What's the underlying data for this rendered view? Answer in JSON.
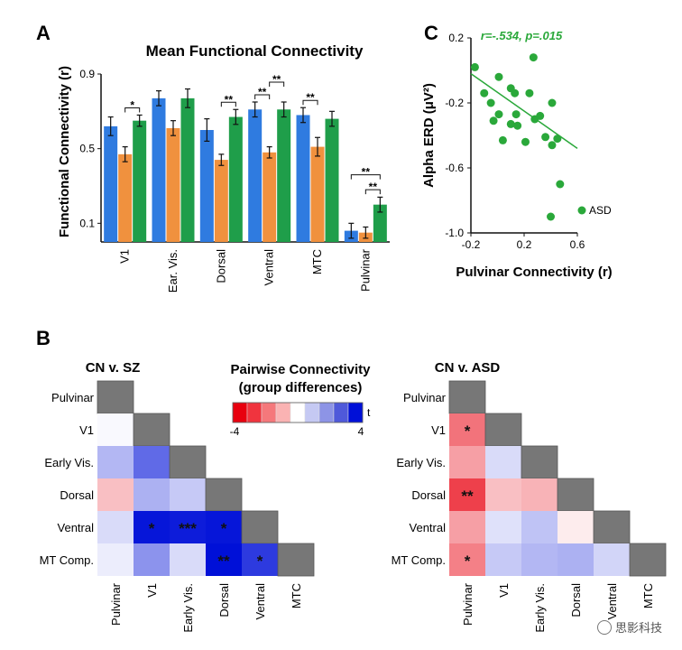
{
  "panels": {
    "a": {
      "letter": "A"
    },
    "b": {
      "letter": "B"
    },
    "c": {
      "letter": "C"
    }
  },
  "watermark": {
    "text": "思影科技",
    "icon": "wechat-icon"
  },
  "chart_data": [
    {
      "id": "panel-a",
      "type": "bar",
      "title": "Mean Functional Connectivity",
      "xlabel": "",
      "ylabel": "Functional Connectivity (r)",
      "ylim": [
        0,
        0.9
      ],
      "yticks": [
        0.1,
        0.5,
        0.9
      ],
      "yticklabels": [
        "0.1",
        "0.5",
        "0.9"
      ],
      "categories": [
        "V1",
        "Ear. Vis.",
        "Dorsal",
        "Ventral",
        "MTC",
        "Pulvinar"
      ],
      "series": [
        {
          "color": "#2f7be0",
          "values": [
            0.62,
            0.77,
            0.6,
            0.71,
            0.68,
            0.06
          ],
          "errors": [
            0.05,
            0.04,
            0.06,
            0.04,
            0.04,
            0.04
          ]
        },
        {
          "color": "#f0913e",
          "values": [
            0.47,
            0.61,
            0.44,
            0.48,
            0.51,
            0.05
          ],
          "errors": [
            0.04,
            0.04,
            0.03,
            0.03,
            0.05,
            0.03
          ]
        },
        {
          "color": "#1f9e4a",
          "values": [
            0.65,
            0.77,
            0.67,
            0.71,
            0.66,
            0.2
          ],
          "errors": [
            0.03,
            0.05,
            0.04,
            0.04,
            0.04,
            0.04
          ]
        }
      ],
      "significance": [
        {
          "category": 0,
          "from": 1,
          "to": 2,
          "label": "*"
        },
        {
          "category": 2,
          "from": 1,
          "to": 2,
          "label": "**"
        },
        {
          "category": 3,
          "from": 0,
          "to": 1,
          "label": "**"
        },
        {
          "category": 3,
          "from": 1,
          "to": 2,
          "label": "**"
        },
        {
          "category": 4,
          "from": 0,
          "to": 1,
          "label": "**"
        },
        {
          "category": 5,
          "from": 0,
          "to": 2,
          "label": "**"
        },
        {
          "category": 5,
          "from": 1,
          "to": 2,
          "label": "**"
        }
      ]
    },
    {
      "id": "panel-c",
      "type": "scatter",
      "xlabel": "Pulvinar Connectivity (r)",
      "ylabel": "Alpha ERD (μV²)",
      "xlim": [
        -0.2,
        0.6
      ],
      "ylim": [
        0.2,
        -1.0
      ],
      "xticks": [
        -0.2,
        0.2,
        0.6
      ],
      "xticklabels": [
        "-0.2",
        "0.2",
        "0.6"
      ],
      "yticks": [
        -1.0,
        -0.6,
        -0.2,
        0.2
      ],
      "yticklabels": [
        "-1.0",
        "-0.6",
        "-0.2",
        "0.2"
      ],
      "annotation": "r=-.534, p=.015",
      "legend": {
        "label": "ASD",
        "color": "#2aa83a",
        "position": "bottom-right"
      },
      "color": "#2aa83a",
      "points": [
        [
          0.4,
          -0.9
        ],
        [
          0.47,
          -0.7
        ],
        [
          0.41,
          -0.46
        ],
        [
          0.45,
          -0.42
        ],
        [
          0.36,
          -0.41
        ],
        [
          0.04,
          -0.43
        ],
        [
          0.21,
          -0.44
        ],
        [
          0.1,
          -0.33
        ],
        [
          -0.03,
          -0.31
        ],
        [
          0.01,
          -0.27
        ],
        [
          0.15,
          -0.34
        ],
        [
          0.28,
          -0.3
        ],
        [
          0.32,
          -0.28
        ],
        [
          0.14,
          -0.27
        ],
        [
          0.41,
          -0.2
        ],
        [
          -0.05,
          -0.2
        ],
        [
          0.13,
          -0.14
        ],
        [
          -0.1,
          -0.14
        ],
        [
          0.24,
          -0.14
        ],
        [
          0.1,
          -0.11
        ],
        [
          0.01,
          -0.04
        ],
        [
          -0.17,
          0.02
        ],
        [
          0.27,
          0.08
        ]
      ],
      "fit": {
        "x": [
          -0.2,
          0.6
        ],
        "y": [
          -0.02,
          -0.48
        ]
      }
    },
    {
      "id": "panel-b-colorbar",
      "type": "heatmap",
      "title": "Pairwise Connectivity",
      "subtitle": "(group differences)",
      "legend_label": "t",
      "range": [
        -4,
        4
      ],
      "ticklabels": [
        "-4",
        "4"
      ],
      "colors": [
        "#e8000f",
        "#f0343e",
        "#f5787b",
        "#fab3b3",
        "#ffffff",
        "#c5c9f3",
        "#8d94e6",
        "#4f59da",
        "#0010d8"
      ]
    },
    {
      "id": "panel-b-sz",
      "type": "heatmap",
      "title": "CN v. SZ",
      "rows": [
        "Pulvinar",
        "V1",
        "Early Vis.",
        "Dorsal",
        "Ventral",
        "MT Comp."
      ],
      "cols": [
        "Pulvinar",
        "V1",
        "Early Vis.",
        "Dorsal",
        "Ventral",
        "MTC"
      ],
      "values": [
        [
          null
        ],
        [
          0.1,
          null
        ],
        [
          1.2,
          2.5,
          null
        ],
        [
          -1.0,
          1.3,
          0.9,
          null
        ],
        [
          0.6,
          3.9,
          3.8,
          3.9,
          null
        ],
        [
          0.3,
          1.8,
          0.6,
          4.0,
          3.3,
          null
        ]
      ],
      "annotations": [
        [
          ""
        ],
        [
          "",
          ""
        ],
        [
          "",
          "",
          ""
        ],
        [
          "",
          "",
          "",
          ""
        ],
        [
          "",
          "*",
          "***",
          "*",
          ""
        ],
        [
          "",
          "",
          "",
          "**",
          "*",
          ""
        ]
      ]
    },
    {
      "id": "panel-b-asd",
      "type": "heatmap",
      "title": "CN v. ASD",
      "rows": [
        "Pulvinar",
        "V1",
        "Early Vis.",
        "Dorsal",
        "Ventral",
        "MT Comp."
      ],
      "cols": [
        "Pulvinar",
        "V1",
        "Early Vis.",
        "Dorsal",
        "Ventral",
        "MTC"
      ],
      "values": [
        [
          null
        ],
        [
          -2.2,
          null
        ],
        [
          -1.5,
          0.6,
          null
        ],
        [
          -3.0,
          -1.0,
          -1.2,
          null
        ],
        [
          -1.5,
          0.5,
          1.0,
          -0.3,
          null
        ],
        [
          -2.0,
          0.9,
          1.2,
          1.3,
          0.7,
          null
        ]
      ],
      "annotations": [
        [
          ""
        ],
        [
          "*",
          ""
        ],
        [
          "",
          "",
          ""
        ],
        [
          "**",
          "",
          "",
          ""
        ],
        [
          "",
          "",
          "",
          "",
          ""
        ],
        [
          "*",
          "",
          "",
          "",
          "",
          ""
        ]
      ]
    }
  ]
}
